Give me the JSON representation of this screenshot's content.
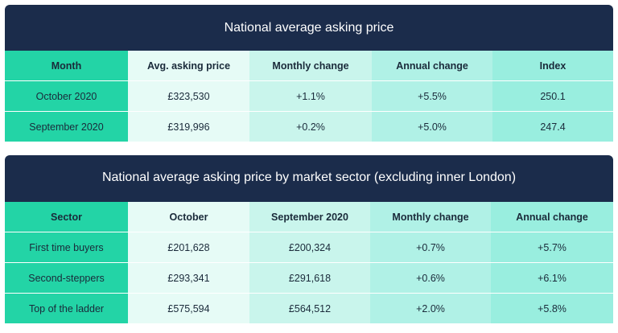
{
  "table1": {
    "title": "National average asking price",
    "headers": [
      "Month",
      "Avg. asking price",
      "Monthly change",
      "Annual change",
      "Index"
    ],
    "rows": [
      [
        "October 2020",
        "£323,530",
        "+1.1%",
        "+5.5%",
        "250.1"
      ],
      [
        "September 2020",
        "£319,996",
        "+0.2%",
        "+5.0%",
        "247.4"
      ]
    ]
  },
  "table2": {
    "title": "National average asking price by market sector (excluding inner London)",
    "headers": [
      "Sector",
      "October",
      "September 2020",
      "Monthly change",
      "Annual change"
    ],
    "rows": [
      [
        "First time buyers",
        "£201,628",
        "£200,324",
        "+0.7%",
        "+5.7%"
      ],
      [
        "Second-steppers",
        "£293,341",
        "£291,618",
        "+0.6%",
        "+6.1%"
      ],
      [
        "Top of the ladder",
        "£575,594",
        "£564,512",
        "+2.0%",
        "+5.8%"
      ]
    ]
  },
  "colors": {
    "banner": "#1b2c4b",
    "col1": "#23d4a6",
    "col2": "#e6fbf6",
    "col3": "#c9f5ec",
    "col4": "#b0f1e6",
    "col5": "#99eedf"
  }
}
